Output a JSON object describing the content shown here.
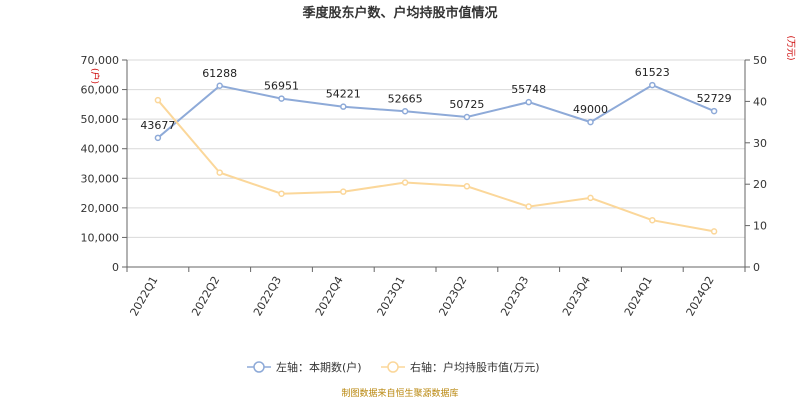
{
  "chart_data": {
    "type": "line",
    "title": "季度股东户数、户均持股市值情况",
    "categories": [
      "2022Q1",
      "2022Q2",
      "2022Q3",
      "2022Q4",
      "2023Q1",
      "2023Q2",
      "2023Q3",
      "2023Q4",
      "2024Q1",
      "2024Q2"
    ],
    "left_axis": {
      "unit": "(户)",
      "ylim": [
        0,
        70000
      ],
      "ticks": [
        "0",
        "10,000",
        "20,000",
        "30,000",
        "40,000",
        "50,000",
        "60,000",
        "70,000"
      ]
    },
    "right_axis": {
      "unit": "(万元)",
      "ylim": [
        0,
        50
      ],
      "ticks": [
        "0",
        "10",
        "20",
        "30",
        "40",
        "50"
      ]
    },
    "series": [
      {
        "name": "左轴：本期数(户)",
        "axis": "left",
        "color": "#8eaad8",
        "values": [
          43677,
          61288,
          56951,
          54221,
          52665,
          50725,
          55748,
          49000,
          61523,
          52729
        ],
        "labels": [
          "43677",
          "61288",
          "56951",
          "54221",
          "52665",
          "50725",
          "55748",
          "49000",
          "61523",
          "52729"
        ]
      },
      {
        "name": "右轴：户均持股市值(万元)",
        "axis": "right",
        "color": "#fbd79a",
        "values": [
          40.3,
          22.8,
          17.7,
          18.2,
          20.4,
          19.5,
          14.6,
          16.7,
          11.3,
          8.6
        ]
      }
    ],
    "grid": true,
    "legend_position": "bottom-center"
  },
  "footer": {
    "source": "制图数据来自恒生聚源数据库"
  }
}
